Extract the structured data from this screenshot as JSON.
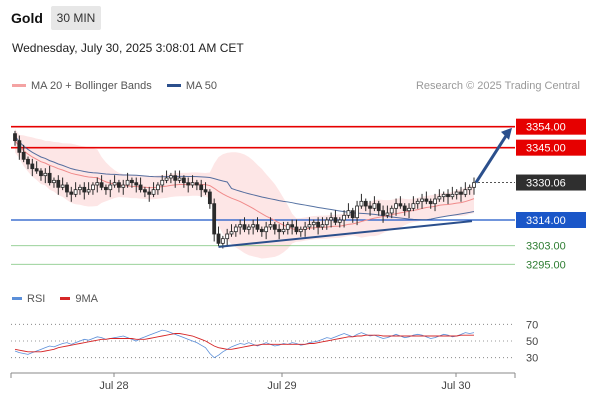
{
  "header": {
    "title": "Gold",
    "timeframe": "30 MIN",
    "datetime": "Wednesday, July 30, 2025 3:08:01 AM CET"
  },
  "legend": {
    "items": [
      {
        "label": "MA 20 + Bollinger Bands",
        "color": "#f4a3a3"
      },
      {
        "label": "MA 50",
        "color": "#2b4f8c"
      }
    ],
    "copyright": "Research © 2025 Trading Central"
  },
  "colors": {
    "resistance": "#e60000",
    "support": "#1a56c8",
    "target_green": "#2ca02c",
    "bollinger_fill": "#fde3e3",
    "ma20": "#f08a8a",
    "ma50": "#2b4f8c",
    "trendline": "#2b4f8c",
    "arrow": "#2b4f8c",
    "candle": "#2a2a2a",
    "rsi": "#5b8fd9",
    "rsi_ma": "#d62728",
    "current_tag": "#2f2f2f"
  },
  "levels": [
    {
      "value": "3354.00",
      "kind": "resistance"
    },
    {
      "value": "3345.00",
      "kind": "resistance"
    },
    {
      "value": "3314.00",
      "kind": "support"
    },
    {
      "value": "3303.00",
      "kind": "target"
    },
    {
      "value": "3295.00",
      "kind": "target"
    }
  ],
  "current_price": "3330.06",
  "rsi_legend": {
    "rsi": "RSI",
    "ma": "9MA"
  },
  "rsi_levels": [
    "70",
    "50",
    "30"
  ],
  "x_labels": [
    "Jul 28",
    "Jul 29",
    "Jul 30"
  ],
  "chart_data": {
    "type": "line",
    "price_ylim": [
      3290,
      3362
    ],
    "close": [
      3348,
      3343,
      3340,
      3338,
      3336,
      3335,
      3333,
      3334,
      3330,
      3331,
      3328,
      3329,
      3326,
      3325,
      3327,
      3328,
      3326,
      3327,
      3329,
      3330,
      3328,
      3327,
      3329,
      3330,
      3328,
      3329,
      3331,
      3330,
      3329,
      3327,
      3326,
      3325,
      3327,
      3329,
      3331,
      3332,
      3333,
      3331,
      3332,
      3330,
      3329,
      3330,
      3329,
      3327,
      3326,
      3321,
      3308,
      3304,
      3306,
      3308,
      3309,
      3311,
      3312,
      3310,
      3311,
      3312,
      3310,
      3309,
      3311,
      3312,
      3310,
      3309,
      3310,
      3312,
      3311,
      3309,
      3310,
      3311,
      3312,
      3313,
      3311,
      3312,
      3314,
      3315,
      3313,
      3314,
      3316,
      3318,
      3315,
      3320,
      3322,
      3320,
      3319,
      3321,
      3318,
      3316,
      3317,
      3319,
      3321,
      3320,
      3318,
      3319,
      3321,
      3322,
      3323,
      3322,
      3321,
      3323,
      3324,
      3325,
      3324,
      3325,
      3326,
      3325,
      3327,
      3328,
      3330
    ],
    "series": [
      {
        "name": "RSI",
        "values": [
          38,
          36,
          35,
          34,
          36,
          38,
          40,
          42,
          44,
          43,
          45,
          47,
          48,
          46,
          48,
          50,
          52,
          51,
          53,
          55,
          54,
          52,
          53,
          54,
          55,
          56,
          54,
          52,
          50,
          53,
          55,
          57,
          59,
          61,
          63,
          62,
          60,
          58,
          56,
          54,
          52,
          50,
          48,
          45,
          42,
          35,
          30,
          33,
          37,
          40,
          43,
          45,
          47,
          46,
          48,
          46,
          44,
          46,
          48,
          46,
          44,
          45,
          47,
          46,
          48,
          47,
          45,
          46,
          48,
          49,
          50,
          52,
          54,
          53,
          55,
          57,
          59,
          57,
          55,
          58,
          60,
          58,
          56,
          57,
          55,
          53,
          54,
          56,
          58,
          56,
          54,
          55,
          57,
          58,
          57,
          55,
          53,
          54,
          56,
          58,
          57,
          55,
          56,
          58,
          60,
          59,
          60
        ]
      },
      {
        "name": "9MA",
        "values": [
          40,
          39,
          38,
          37,
          37,
          37,
          37,
          38,
          39,
          40,
          42,
          43,
          44,
          45,
          46,
          47,
          48,
          49,
          50,
          51,
          52,
          52,
          53,
          53,
          53,
          53,
          53,
          53,
          52,
          52,
          52,
          53,
          54,
          55,
          56,
          57,
          58,
          59,
          59,
          58,
          57,
          56,
          54,
          52,
          50,
          47,
          44,
          42,
          41,
          40,
          40,
          41,
          42,
          43,
          44,
          45,
          45,
          46,
          46,
          46,
          46,
          46,
          46,
          46,
          46,
          46,
          46,
          46,
          47,
          47,
          48,
          49,
          50,
          51,
          52,
          53,
          54,
          55,
          55,
          56,
          56,
          57,
          57,
          57,
          57,
          56,
          56,
          56,
          56,
          56,
          56,
          56,
          56,
          56,
          56,
          56,
          56,
          56,
          56,
          56,
          56,
          56,
          56,
          57,
          57,
          57,
          57
        ]
      }
    ]
  }
}
